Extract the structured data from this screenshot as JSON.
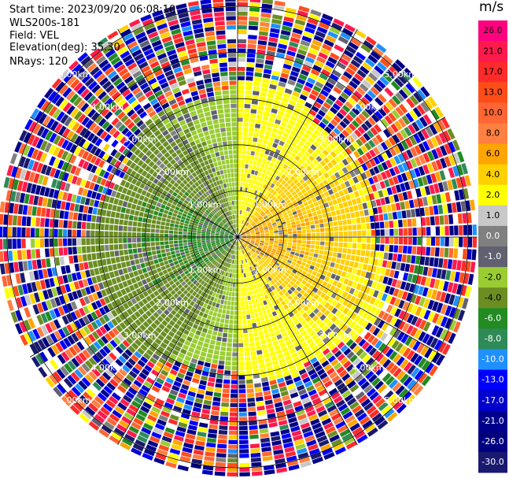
{
  "header": {
    "start_time": "Start time: 2023/09/20 06:08:10",
    "instrument": "WLS200s-181",
    "field": "Field: VEL",
    "elevation": "Elevation(deg): 35.30",
    "nrays": "NRays: 120"
  },
  "colorbar": {
    "unit": "m/s",
    "ticks": [
      "26.0",
      "21.0",
      "17.0",
      "13.0",
      "10.0",
      "8.0",
      "6.0",
      "4.0",
      "2.0",
      "1.0",
      "0.0",
      "-1.0",
      "-2.0",
      "-4.0",
      "-6.0",
      "-8.0",
      "-10.0",
      "-13.0",
      "-17.0",
      "-21.0",
      "-26.0",
      "-30.0"
    ],
    "colors": [
      "#ff0080",
      "#ff1a4d",
      "#ff2a2a",
      "#ff4d1a",
      "#ff6633",
      "#ff8040",
      "#ffa500",
      "#ffd000",
      "#ffff00",
      "#c8c8c8",
      "#808080",
      "#606070",
      "#9acd32",
      "#6b8e23",
      "#228b22",
      "#2e8b57",
      "#1e90ff",
      "#0000ff",
      "#0000cd",
      "#00008b",
      "#000080",
      "#191970"
    ]
  },
  "chart_data": {
    "type": "heatmap",
    "projection": "polar-ppi",
    "field": "VEL",
    "units": "m/s",
    "nrays": 120,
    "range_rings_km": [
      1.0,
      2.0,
      3.0,
      4.0,
      5.0
    ],
    "ring_labels": [
      "1.00km",
      "2.00km",
      "3.00km",
      "4.00km",
      "5.00km"
    ],
    "max_range_km": 5.2,
    "value_range": [
      -30,
      26
    ],
    "pattern": {
      "near_field_limit_km": 3.1,
      "positive_sector_center_deg": 90,
      "negative_sector_center_deg": 270,
      "peak_positive": 8.0,
      "peak_negative": -6.0,
      "far_field": "noise"
    }
  }
}
